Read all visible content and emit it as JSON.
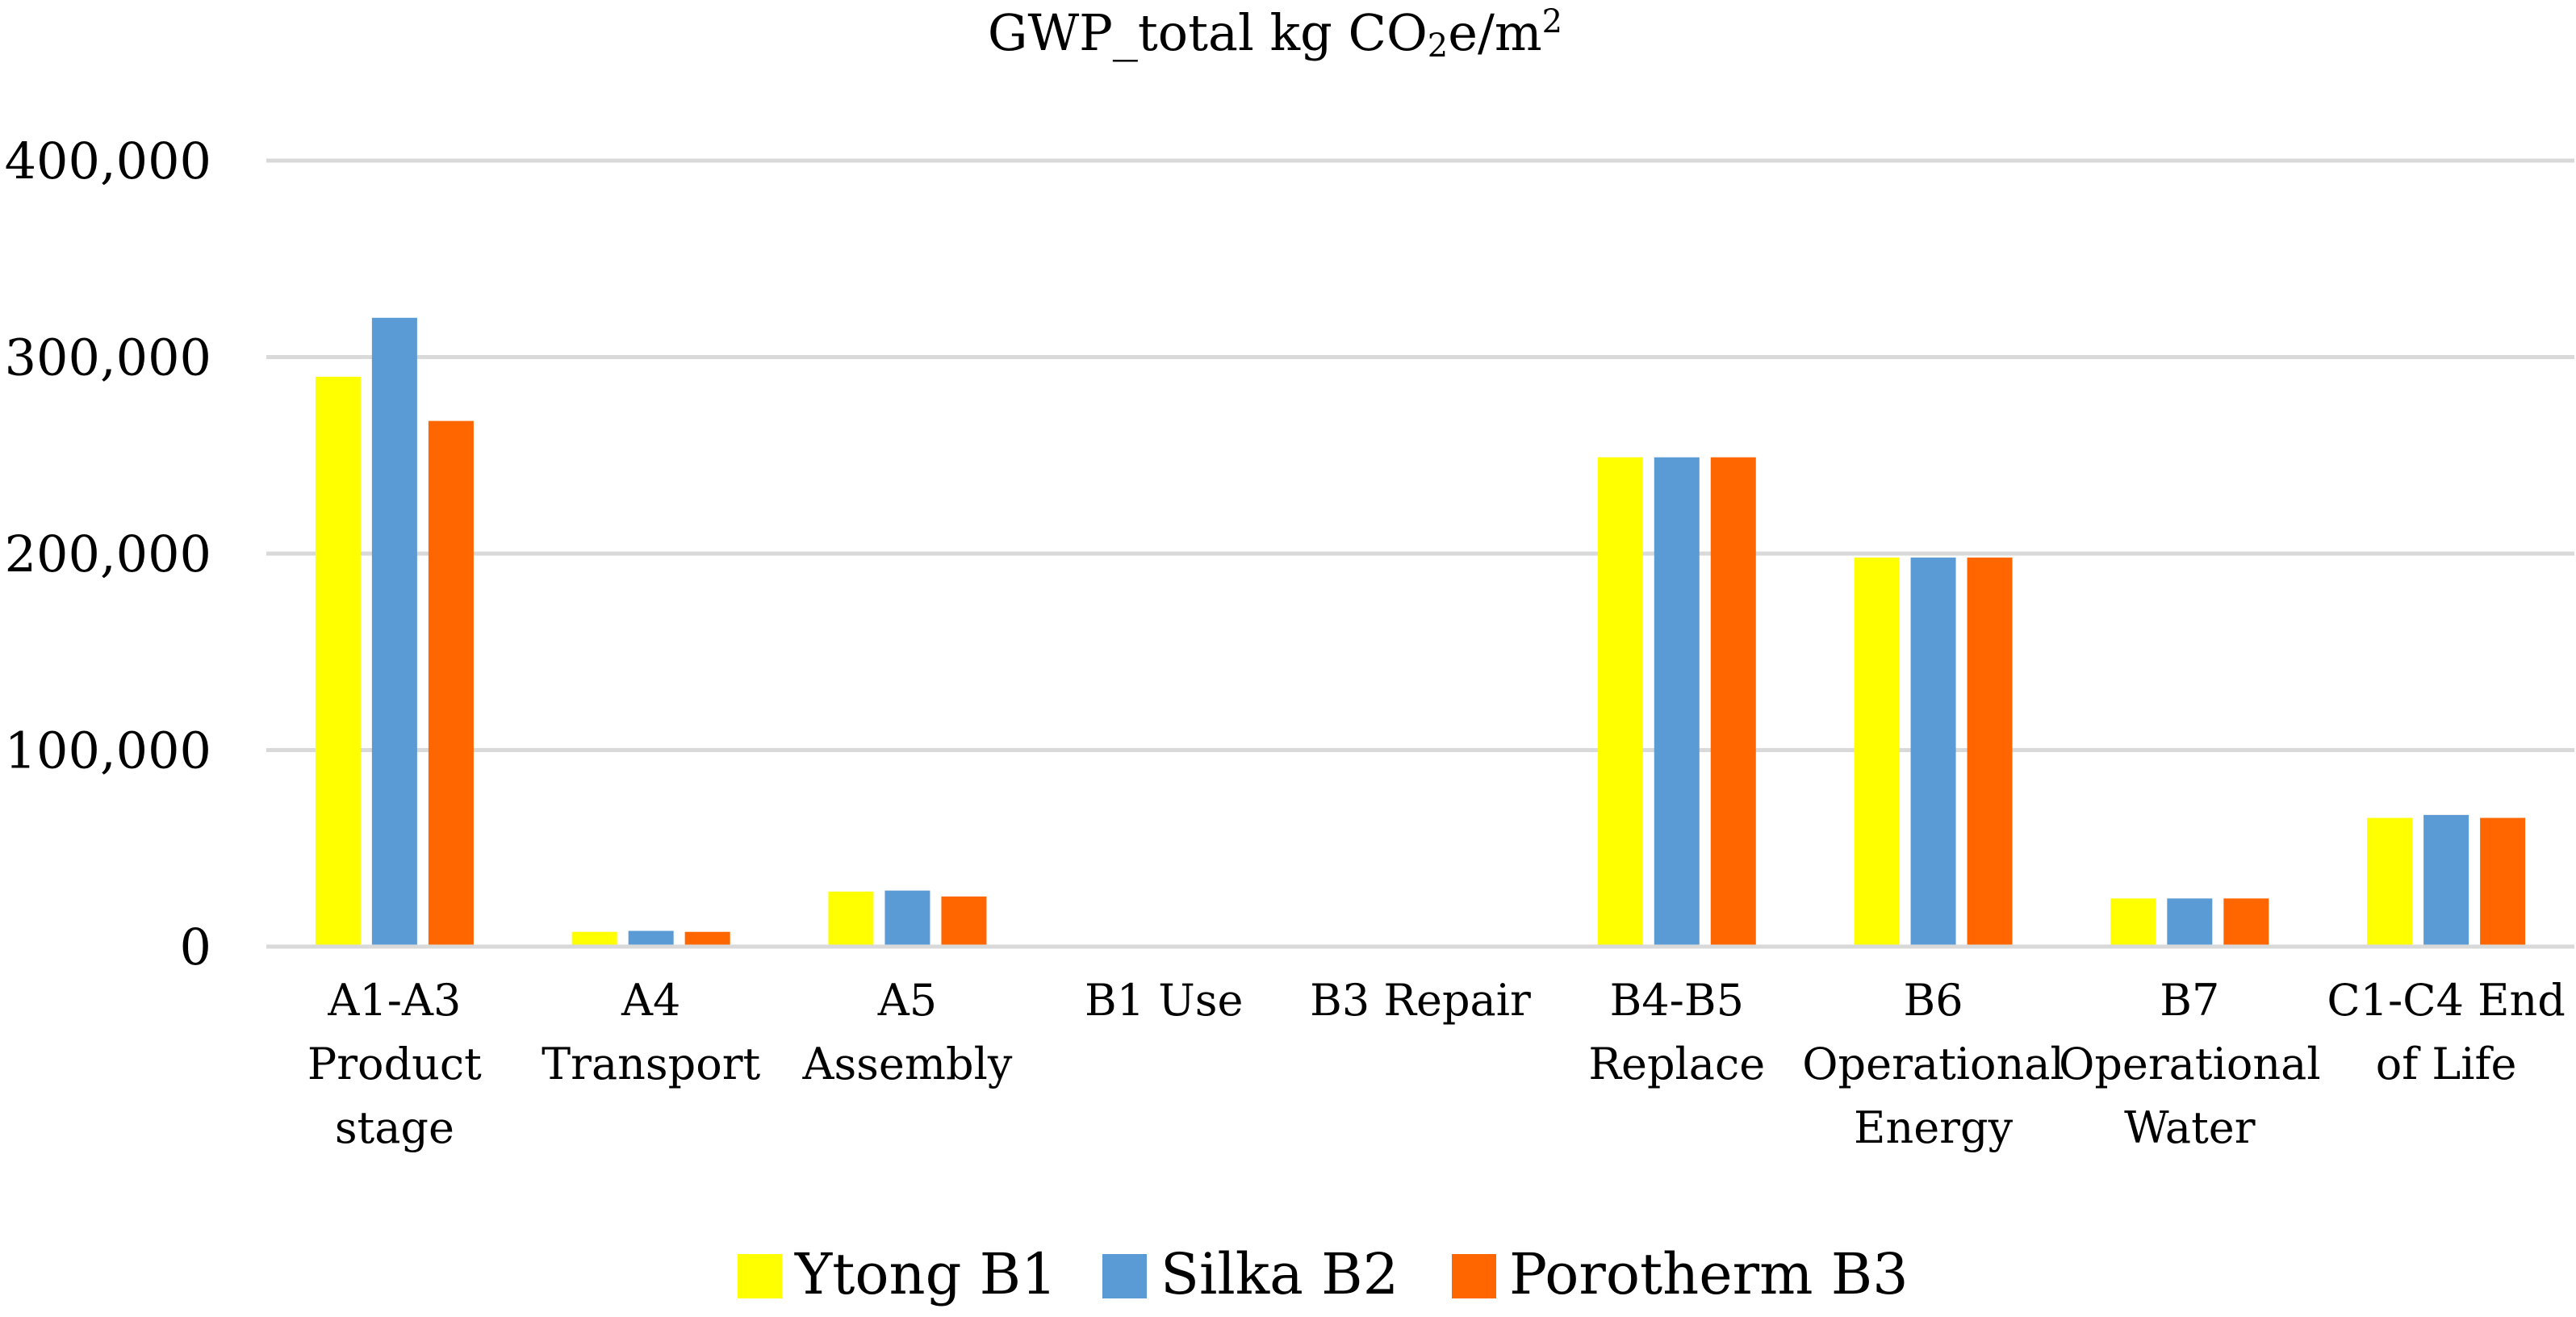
{
  "chart_data": {
    "type": "bar",
    "title": {
      "main": "GWP_total kg CO",
      "sub": "2",
      "mid": "e/m",
      "sup": "2"
    },
    "categories": [
      [
        "A1-A3",
        "Product",
        "stage"
      ],
      [
        "A4",
        "Transport"
      ],
      [
        "A5",
        "Assembly"
      ],
      [
        "B1 Use"
      ],
      [
        "B3 Repair"
      ],
      [
        "B4-B5",
        "Replace"
      ],
      [
        "B6",
        "Operational",
        "Energy"
      ],
      [
        "B7",
        "Operational",
        "Water"
      ],
      [
        "C1-C4 End",
        "of Life"
      ]
    ],
    "series": [
      {
        "name": "Ytong B1",
        "color": "#FFFF00",
        "values": [
          290000,
          7500,
          28000,
          0,
          0,
          249000,
          198000,
          24500,
          65500
        ]
      },
      {
        "name": "Silka B2",
        "color": "#5B9BD5",
        "values": [
          320000,
          8000,
          28500,
          0,
          0,
          249000,
          198000,
          24500,
          67000
        ]
      },
      {
        "name": "Porotherm B3",
        "color": "#FF6600",
        "values": [
          267500,
          7500,
          25500,
          0,
          0,
          249000,
          198000,
          24500,
          65500
        ]
      }
    ],
    "yticks": [
      {
        "value": 0,
        "label": "0"
      },
      {
        "value": 100000,
        "label": "100,000"
      },
      {
        "value": 200000,
        "label": "200,000"
      },
      {
        "value": 300000,
        "label": "300,000"
      },
      {
        "value": 400000,
        "label": "400,000"
      }
    ],
    "ylim": [
      0,
      400000
    ],
    "xlabel": "",
    "ylabel": "",
    "grid": true,
    "legend_position": "bottom"
  }
}
